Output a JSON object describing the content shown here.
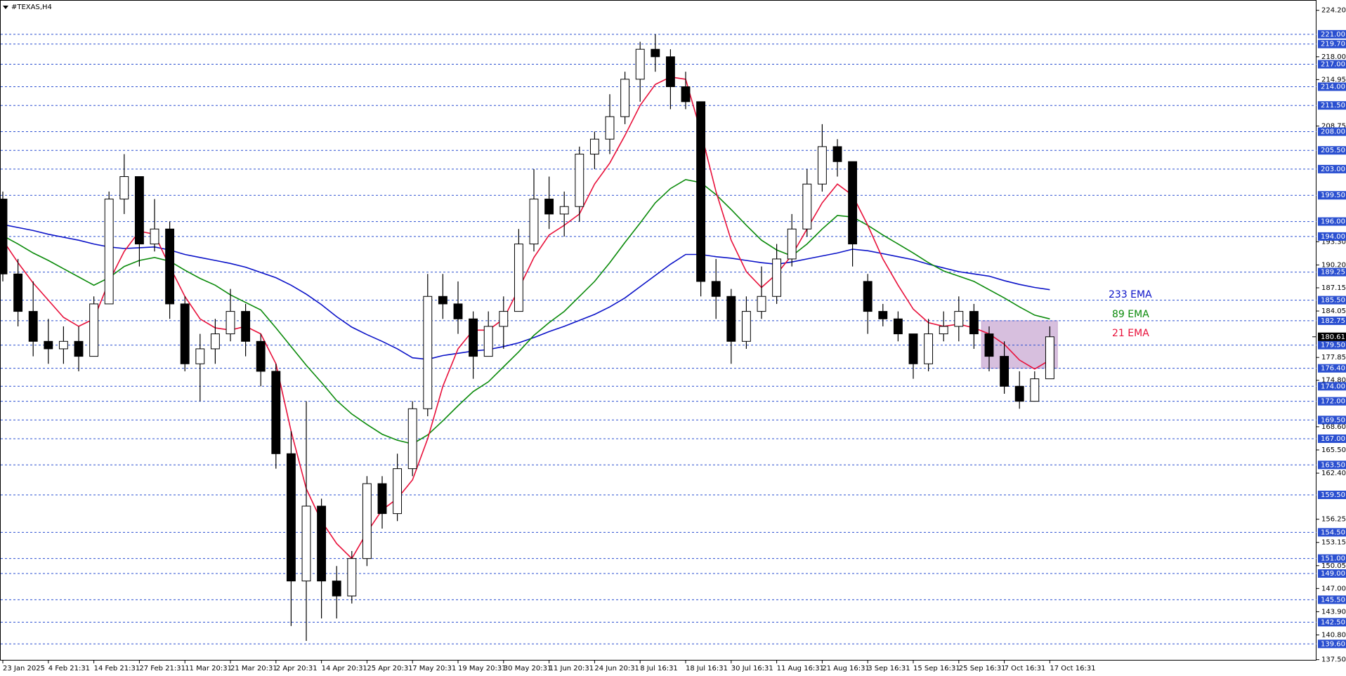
{
  "chart_data": {
    "type": "candlestick",
    "title": "#TEXAS,H4",
    "candle_color": "#000000",
    "categories": [
      "23 Jan 2025",
      null,
      null,
      "4 Feb 21:31",
      null,
      null,
      "14 Feb 21:31",
      null,
      null,
      "27 Feb 21:31",
      null,
      null,
      "11 Mar 20:31",
      null,
      null,
      "21 Mar 20:31",
      null,
      null,
      "2 Apr 20:31",
      null,
      null,
      "14 Apr 20:31",
      null,
      null,
      "25 Apr 20:31",
      null,
      null,
      "7 May 20:31",
      null,
      null,
      "19 May 20:31",
      null,
      null,
      "30 May 20:31",
      null,
      null,
      "11 Jun 20:31",
      null,
      null,
      "24 Jun 20:31",
      null,
      null,
      "8 Jul 16:31",
      null,
      null,
      "18 Jul 16:31",
      null,
      null,
      "30 Jul 16:31",
      null,
      null,
      "11 Aug 16:31",
      null,
      null,
      "21 Aug 16:31",
      null,
      null,
      "3 Sep 16:31",
      null,
      null,
      "15 Sep 16:31",
      null,
      null,
      "25 Sep 16:31",
      null,
      null,
      "7 Oct 16:31",
      null,
      null,
      "17 Oct 16:31"
    ],
    "open": [
      199,
      189,
      184,
      180,
      179,
      180,
      178,
      185,
      199,
      202,
      193,
      195,
      185,
      177,
      179,
      181,
      184,
      180,
      176,
      165,
      148,
      158,
      148,
      146,
      151,
      161,
      157,
      163,
      171,
      186,
      185,
      183,
      178,
      182,
      184,
      193,
      199,
      197,
      198,
      205,
      207,
      210,
      215,
      219,
      218,
      214,
      212,
      188,
      186,
      180,
      184,
      186,
      191,
      195,
      201,
      206,
      204,
      188,
      184,
      183,
      181,
      177,
      181,
      182,
      184,
      181,
      178,
      174,
      172,
      175
    ],
    "high": [
      200,
      191,
      188,
      183,
      182,
      182,
      186,
      200,
      205,
      202,
      199,
      196,
      186,
      181,
      183,
      187,
      185,
      181,
      177,
      168,
      172,
      159,
      150,
      152,
      162,
      162,
      165,
      172,
      189,
      189,
      188,
      184,
      184,
      186,
      195,
      203,
      202,
      200,
      206,
      208,
      213,
      216,
      220,
      221,
      219,
      216,
      212,
      191,
      187,
      186,
      190,
      193,
      197,
      203,
      209,
      207,
      204,
      189,
      185,
      184,
      181,
      183,
      184,
      186,
      185,
      182,
      180,
      176,
      176,
      182
    ],
    "low": [
      188,
      182,
      178,
      177,
      177,
      176,
      178,
      185,
      197,
      190,
      192,
      183,
      176,
      172,
      177,
      180,
      178,
      174,
      163,
      142,
      140,
      143,
      143,
      145,
      150,
      155,
      156,
      162,
      170,
      183,
      181,
      175,
      178,
      179,
      184,
      192,
      195,
      194,
      196,
      203,
      205,
      209,
      212,
      216,
      211,
      211,
      186,
      183,
      177,
      179,
      183,
      185,
      190,
      194,
      200,
      202,
      190,
      181,
      182,
      180,
      175,
      176,
      180,
      180,
      179,
      176,
      173,
      171,
      172,
      175
    ],
    "close": [
      189,
      184,
      180,
      179,
      180,
      178,
      185,
      199,
      202,
      193,
      195,
      185,
      177,
      179,
      181,
      184,
      180,
      176,
      165,
      148,
      158,
      148,
      146,
      151,
      161,
      157,
      163,
      171,
      186,
      185,
      183,
      178,
      182,
      184,
      193,
      199,
      197,
      198,
      205,
      207,
      210,
      215,
      219,
      218,
      214,
      212,
      188,
      186,
      180,
      184,
      186,
      191,
      195,
      201,
      206,
      204,
      193,
      184,
      183,
      181,
      177,
      181,
      182,
      184,
      181,
      178,
      174,
      172,
      175,
      180.61
    ],
    "lines": [
      {
        "name": "233 EMA",
        "color": "#0a12c8",
        "values": [
          195.6,
          195.2,
          194.8,
          194.3,
          193.9,
          193.5,
          193,
          192.6,
          192.4,
          192.5,
          192.6,
          192.2,
          191.6,
          191.2,
          190.8,
          190.4,
          189.9,
          189.2,
          188.5,
          187.5,
          186.3,
          184.9,
          183.3,
          181.9,
          180.9,
          180,
          179,
          177.8,
          177.6,
          178.1,
          178.4,
          178.7,
          178.9,
          179.3,
          179.8,
          180.5,
          181.3,
          182,
          182.8,
          183.6,
          184.6,
          185.8,
          187.3,
          188.8,
          190.3,
          191.6,
          191.6,
          191.3,
          191.1,
          190.8,
          190.5,
          190.3,
          190.6,
          191,
          191.4,
          191.8,
          192.3,
          192.1,
          191.7,
          191.3,
          190.9,
          190.3,
          189.8,
          189.3,
          189,
          188.7,
          188.1,
          187.6,
          187.2,
          186.9
        ]
      },
      {
        "name": "89 EMA",
        "color": "#0a8a0a",
        "values": [
          194.1,
          193,
          191.8,
          190.8,
          189.7,
          188.6,
          187.5,
          188.5,
          190,
          190.8,
          191.2,
          190.7,
          189.5,
          188.4,
          187.5,
          186.2,
          185.2,
          184.2,
          181.8,
          179.3,
          176.8,
          174.5,
          172.1,
          170.3,
          168.9,
          167.6,
          166.8,
          166.3,
          167.5,
          169.4,
          171.4,
          173.3,
          174.6,
          176.6,
          178.6,
          180.8,
          182.5,
          184,
          186,
          188,
          190.5,
          193.2,
          195.8,
          198.5,
          200.4,
          201.6,
          201.2,
          199.6,
          197.6,
          195.5,
          193.5,
          192.2,
          191.4,
          193,
          195,
          196.8,
          196.6,
          195.5,
          194.2,
          193,
          191.8,
          190.5,
          189.4,
          188.7,
          188,
          186.9,
          185.8,
          184.6,
          183.5,
          183
        ]
      },
      {
        "name": "21 EMA",
        "color": "#e8103a",
        "values": [
          193.5,
          190.5,
          187.8,
          185.5,
          183.2,
          182,
          183,
          188,
          192,
          194.7,
          194.3,
          190,
          186,
          183,
          181.8,
          181.5,
          182,
          181,
          177,
          168,
          160.3,
          156,
          153,
          151,
          154.5,
          157.5,
          159,
          161.5,
          167,
          174,
          179,
          181.5,
          181.5,
          183,
          187,
          191.2,
          194.2,
          195.5,
          197,
          201,
          203.8,
          207.5,
          211.5,
          214.3,
          215.3,
          215,
          208,
          200,
          193.5,
          189.3,
          187.2,
          189,
          191.5,
          195,
          198.5,
          201,
          199.5,
          195.5,
          191,
          187.5,
          184.3,
          182.5,
          182,
          182.3,
          181.8,
          181,
          179.6,
          177.5,
          176.3,
          177.5
        ]
      }
    ],
    "zone": {
      "from": 65,
      "to": 70,
      "ylim": [
        176.4,
        182.75
      ],
      "color": "#c9a9d3"
    },
    "last_price": {
      "value": 180.61,
      "label": "180.61"
    },
    "ylim": [
      137.5,
      224.2
    ],
    "yticks": [
      {
        "value": 224.2,
        "label": "224.20"
      },
      {
        "value": 218,
        "label": "218.00"
      },
      {
        "value": 214.95,
        "label": "214.95"
      },
      {
        "value": 208.75,
        "label": "208.75"
      },
      {
        "value": 193.3,
        "label": "193.30"
      },
      {
        "value": 190.2,
        "label": "190.20"
      },
      {
        "value": 187.15,
        "label": "187.15"
      },
      {
        "value": 184.05,
        "label": "184.05"
      },
      {
        "value": 177.85,
        "label": "177.85"
      },
      {
        "value": 174.8,
        "label": "174.80"
      },
      {
        "value": 168.6,
        "label": "168.60"
      },
      {
        "value": 165.5,
        "label": "165.50"
      },
      {
        "value": 162.4,
        "label": "162.40"
      },
      {
        "value": 156.25,
        "label": "156.25"
      },
      {
        "value": 153.15,
        "label": "153.15"
      },
      {
        "value": 150.05,
        "label": "150.05"
      },
      {
        "value": 147,
        "label": "147.00"
      },
      {
        "value": 143.9,
        "label": "143.90"
      },
      {
        "value": 140.8,
        "label": "140.80"
      },
      {
        "value": 137.5,
        "label": "137.50"
      }
    ],
    "level_color": "#2a4fd0",
    "levels": [
      {
        "value": 221,
        "label": "221.00"
      },
      {
        "value": 219.7,
        "label": "219.70"
      },
      {
        "value": 217,
        "label": "217.00"
      },
      {
        "value": 214,
        "label": "214.00"
      },
      {
        "value": 211.5,
        "label": "211.50"
      },
      {
        "value": 208,
        "label": "208.00"
      },
      {
        "value": 205.5,
        "label": "205.50"
      },
      {
        "value": 203,
        "label": "203.00"
      },
      {
        "value": 199.5,
        "label": "199.50"
      },
      {
        "value": 196,
        "label": "196.00"
      },
      {
        "value": 194,
        "label": "194.00"
      },
      {
        "value": 189.25,
        "label": "189.25"
      },
      {
        "value": 185.5,
        "label": "185.50"
      },
      {
        "value": 182.75,
        "label": "182.75"
      },
      {
        "value": 179.5,
        "label": "179.50"
      },
      {
        "value": 176.4,
        "label": "176.40"
      },
      {
        "value": 174,
        "label": "174.00"
      },
      {
        "value": 172,
        "label": "172.00"
      },
      {
        "value": 169.5,
        "label": "169.50"
      },
      {
        "value": 167,
        "label": "167.00"
      },
      {
        "value": 163.5,
        "label": "163.50"
      },
      {
        "value": 159.5,
        "label": "159.50"
      },
      {
        "value": 154.5,
        "label": "154.50"
      },
      {
        "value": 151,
        "label": "151.00"
      },
      {
        "value": 149,
        "label": "149.00"
      },
      {
        "value": 145.5,
        "label": "145.50"
      },
      {
        "value": 142.5,
        "label": "142.50"
      },
      {
        "value": 139.6,
        "label": "139.60"
      }
    ]
  }
}
